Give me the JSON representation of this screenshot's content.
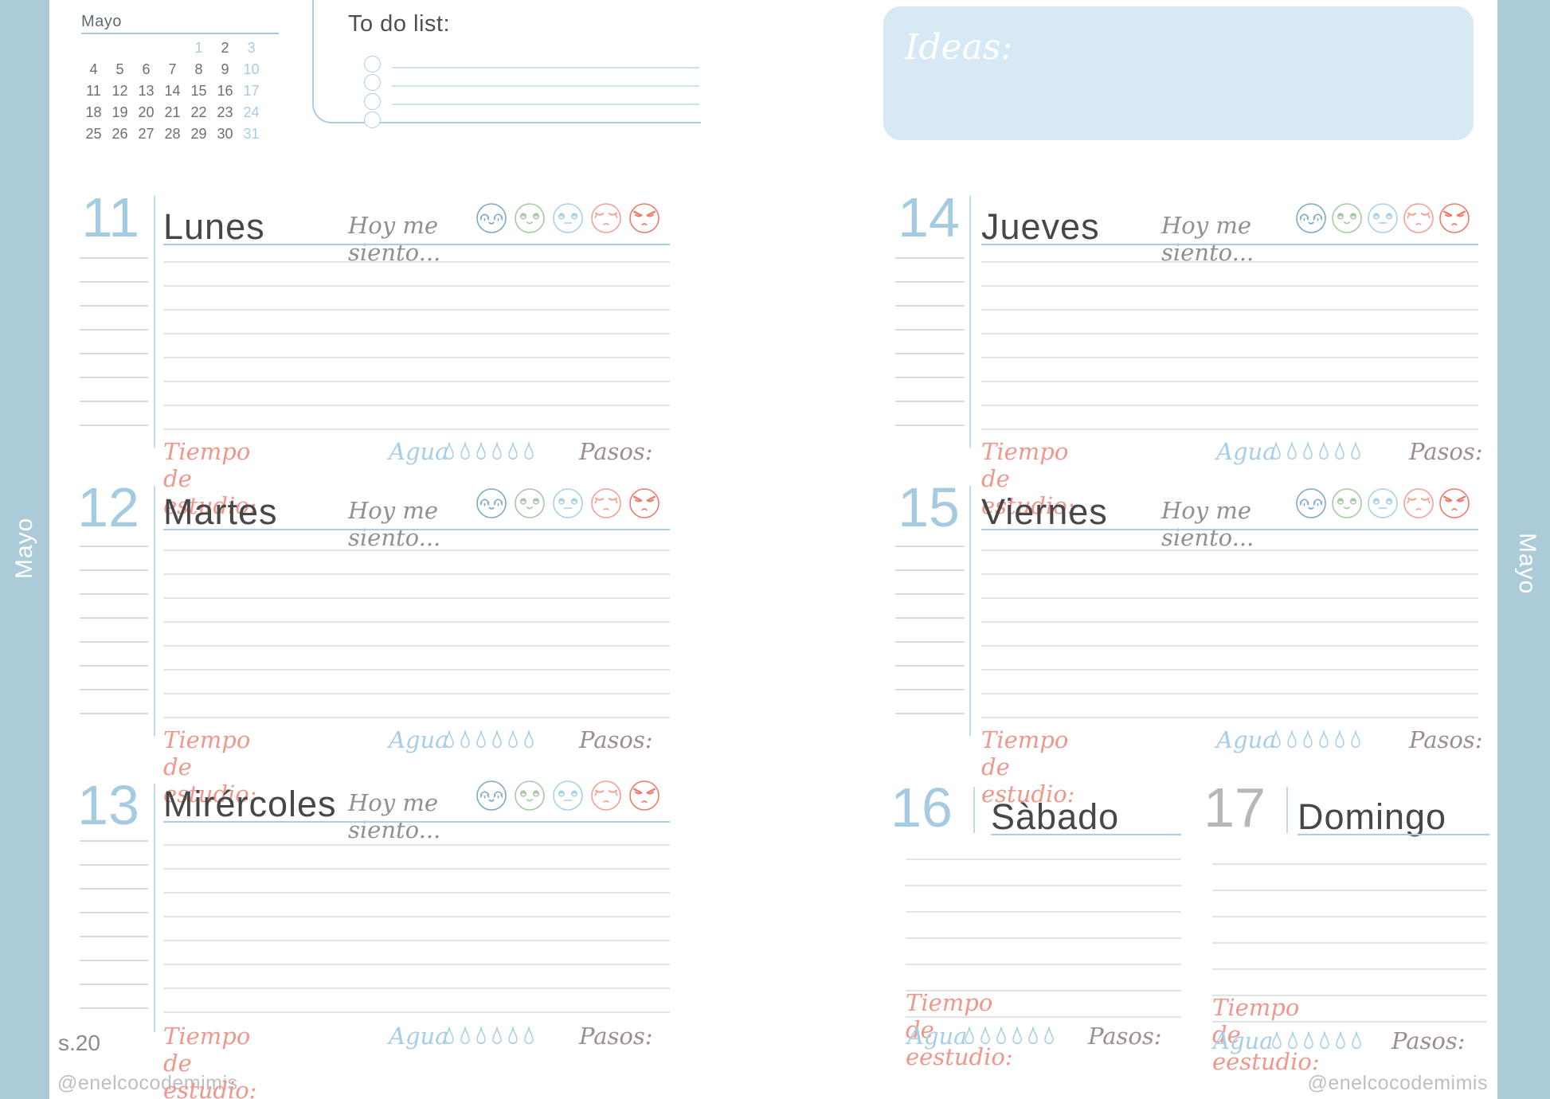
{
  "page": {
    "month_tab": "Mayo",
    "page_number": "s.20",
    "handle": "@enelcocodemimis"
  },
  "mini_calendar": {
    "title": "Mayo",
    "weeks": [
      [
        "",
        "",
        "",
        "",
        "1",
        "2",
        "3"
      ],
      [
        "4",
        "5",
        "6",
        "7",
        "8",
        "9",
        "10"
      ],
      [
        "11",
        "12",
        "13",
        "14",
        "15",
        "16",
        "17"
      ],
      [
        "18",
        "19",
        "20",
        "21",
        "22",
        "23",
        "24"
      ],
      [
        "25",
        "26",
        "27",
        "28",
        "29",
        "30",
        "31"
      ]
    ],
    "highlighted_days": [
      "1",
      "3",
      "10",
      "17",
      "24",
      "31"
    ]
  },
  "todo": {
    "title": "To do list:",
    "row_count": 4
  },
  "ideas": {
    "title": "Ideas:"
  },
  "labels": {
    "feeling": "Hoy me siento...",
    "study": "Tiempo de estudio:",
    "study_weekend": "Tiempo de eestudio:",
    "water": "Agua",
    "steps": "Pasos:",
    "water_drop_count": 6
  },
  "moods": [
    {
      "name": "very-happy"
    },
    {
      "name": "happy"
    },
    {
      "name": "neutral"
    },
    {
      "name": "annoyed"
    },
    {
      "name": "angry"
    }
  ],
  "days": [
    {
      "number": "11",
      "name": "Lunes",
      "layout": "full",
      "col": "left",
      "row": 0
    },
    {
      "number": "12",
      "name": "Martes",
      "layout": "full",
      "col": "left",
      "row": 1
    },
    {
      "number": "13",
      "name": "Mirércoles",
      "layout": "full",
      "col": "left",
      "row": 2
    },
    {
      "number": "14",
      "name": "Jueves",
      "layout": "full",
      "col": "right",
      "row": 0
    },
    {
      "number": "15",
      "name": "Viernes",
      "layout": "full",
      "col": "right",
      "row": 1
    },
    {
      "number": "16",
      "name": "Sàbado",
      "layout": "weekend",
      "slot": 0
    },
    {
      "number": "17",
      "name": "Domingo",
      "layout": "weekend",
      "slot": 1,
      "muted_number": true
    }
  ],
  "colors": {
    "accent_blue": "#a9cbdf",
    "underline_blue": "#a7d0e4",
    "pale_blue_fill": "#d7e9f4",
    "tab_blue": "#abcbd8",
    "number_blue": "#a5cbe0",
    "number_grey": "#b7b7b7",
    "name_grey": "#474747",
    "line_grey": "#e3e3e3",
    "margin_line_grey": "#dadada",
    "vline_blue": "#bcdcec",
    "feeling_grey": "#909090",
    "salmon": "#f0978c",
    "water_blue": "#a6cfe7",
    "steps_mauve": "#9c8e8e",
    "todo_line": "#cfe2ef",
    "footer_grey": "#bfbfbf",
    "mood_colors": [
      "#7ea9c6",
      "#a6cba2",
      "#a6d2e8",
      "#f2a193",
      "#ed7b6c"
    ]
  }
}
